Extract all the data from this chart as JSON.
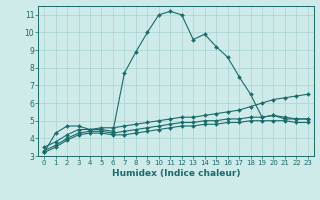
{
  "xlabel": "Humidex (Indice chaleur)",
  "background_color": "#ceeae9",
  "grid_color": "#a8d4d3",
  "line_color": "#1a6b6b",
  "xlim": [
    -0.5,
    23.5
  ],
  "ylim": [
    3,
    11.5
  ],
  "yticks": [
    3,
    4,
    5,
    6,
    7,
    8,
    9,
    10,
    11
  ],
  "xticks": [
    0,
    1,
    2,
    3,
    4,
    5,
    6,
    7,
    8,
    9,
    10,
    11,
    12,
    13,
    14,
    15,
    16,
    17,
    18,
    19,
    20,
    21,
    22,
    23
  ],
  "series": [
    {
      "x": [
        0,
        1,
        2,
        3,
        4,
        5,
        6,
        7,
        8,
        9,
        10,
        11,
        12,
        13,
        14,
        15,
        16,
        17,
        18,
        19,
        20,
        21,
        22,
        23
      ],
      "y": [
        3.2,
        4.3,
        4.7,
        4.7,
        4.5,
        4.5,
        4.4,
        7.7,
        8.9,
        10.0,
        11.0,
        11.2,
        11.0,
        9.6,
        9.9,
        9.2,
        8.6,
        7.5,
        6.5,
        5.2,
        5.3,
        5.1,
        5.1,
        5.1
      ]
    },
    {
      "x": [
        0,
        1,
        2,
        3,
        4,
        5,
        6,
        7,
        8,
        9,
        10,
        11,
        12,
        13,
        14,
        15,
        16,
        17,
        18,
        19,
        20,
        21,
        22,
        23
      ],
      "y": [
        3.5,
        3.8,
        4.2,
        4.5,
        4.5,
        4.6,
        4.6,
        4.7,
        4.8,
        4.9,
        5.0,
        5.1,
        5.2,
        5.2,
        5.3,
        5.4,
        5.5,
        5.6,
        5.8,
        6.0,
        6.2,
        6.3,
        6.4,
        6.5
      ]
    },
    {
      "x": [
        0,
        1,
        2,
        3,
        4,
        5,
        6,
        7,
        8,
        9,
        10,
        11,
        12,
        13,
        14,
        15,
        16,
        17,
        18,
        19,
        20,
        21,
        22,
        23
      ],
      "y": [
        3.3,
        3.6,
        4.0,
        4.3,
        4.4,
        4.4,
        4.3,
        4.4,
        4.5,
        4.6,
        4.7,
        4.8,
        4.9,
        4.9,
        5.0,
        5.0,
        5.1,
        5.1,
        5.2,
        5.2,
        5.3,
        5.2,
        5.1,
        5.1
      ]
    },
    {
      "x": [
        0,
        1,
        2,
        3,
        4,
        5,
        6,
        7,
        8,
        9,
        10,
        11,
        12,
        13,
        14,
        15,
        16,
        17,
        18,
        19,
        20,
        21,
        22,
        23
      ],
      "y": [
        3.2,
        3.5,
        3.9,
        4.2,
        4.3,
        4.3,
        4.2,
        4.2,
        4.3,
        4.4,
        4.5,
        4.6,
        4.7,
        4.7,
        4.8,
        4.8,
        4.9,
        4.9,
        5.0,
        5.0,
        5.0,
        5.0,
        4.9,
        4.9
      ]
    }
  ]
}
